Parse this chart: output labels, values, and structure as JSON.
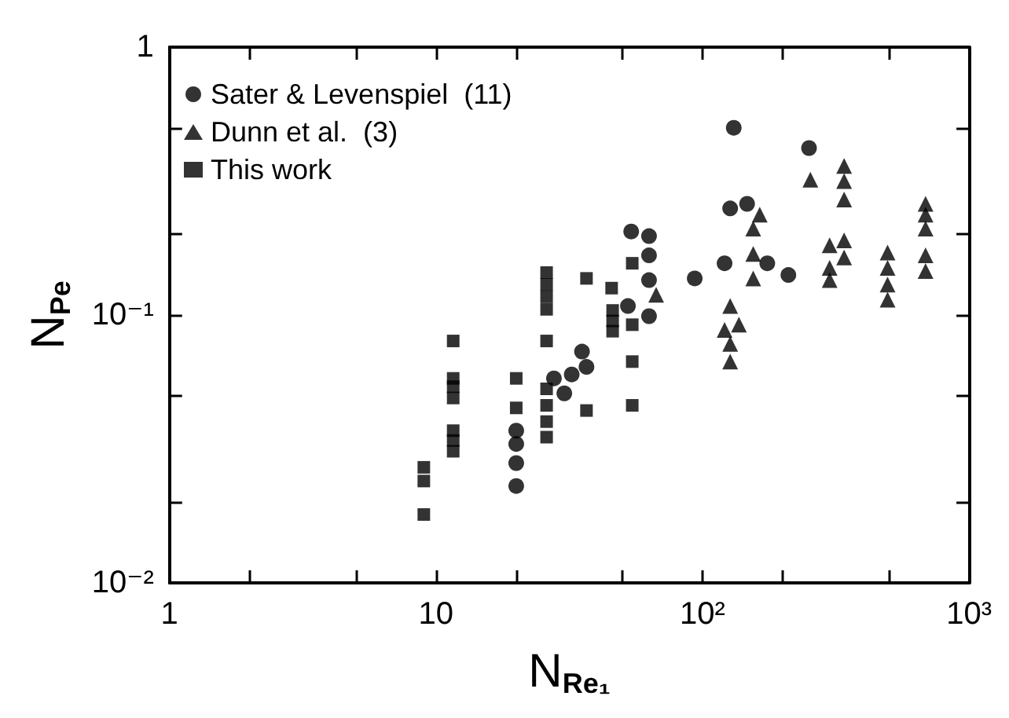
{
  "chart_data": {
    "type": "scatter",
    "xlabel": "N$_{Re₁}$",
    "ylabel": "N$_{Pe}$",
    "log": "xy",
    "grid": false,
    "legend": "top left",
    "xlim": [
      1,
      1000
    ],
    "xticks": [
      {
        "value": 1,
        "label": "1"
      },
      {
        "value": 2,
        "label": null
      },
      {
        "value": 5,
        "label": null
      },
      {
        "value": 10,
        "label": "10"
      },
      {
        "value": 20,
        "label": null
      },
      {
        "value": 50,
        "label": null
      },
      {
        "value": 100,
        "label": "10²"
      },
      {
        "value": 200,
        "label": null
      },
      {
        "value": 500,
        "label": null
      },
      {
        "value": 1000,
        "label": "10³"
      }
    ],
    "ylim": [
      0.01,
      1
    ],
    "yticks": [
      {
        "value": 0.01,
        "label": "10⁻²"
      },
      {
        "value": 0.02,
        "label": null
      },
      {
        "value": 0.05,
        "label": null
      },
      {
        "value": 0.1,
        "label": "10⁻¹"
      },
      {
        "value": 0.2,
        "label": null
      },
      {
        "value": 0.5,
        "label": null
      },
      {
        "value": 1,
        "label": "1"
      }
    ],
    "series": [
      {
        "name": "Sater & Levenspiel  (11)",
        "color": "#000000",
        "marker": "circle",
        "x": [
          20,
          20,
          20,
          20,
          27.7,
          30.3,
          32.3,
          35.3,
          36.7,
          54,
          63,
          63,
          63,
          63,
          52.5,
          93.5,
          131,
          251,
          127,
          147,
          121,
          175,
          210
        ],
        "values": [
          0.037,
          0.033,
          0.028,
          0.023,
          0.058,
          0.051,
          0.06,
          0.073,
          0.064,
          0.205,
          0.197,
          0.167,
          0.135,
          0.099,
          0.108,
          0.137,
          0.5,
          0.42,
          0.25,
          0.26,
          0.156,
          0.156,
          0.141
        ]
      },
      {
        "name": "Dunn et al.  (3)",
        "color": "#000000",
        "marker": "triangle",
        "x": [
          67,
          164,
          155,
          155,
          155,
          127,
          137,
          121,
          127,
          127,
          254,
          340,
          340,
          340,
          300,
          340,
          340,
          300,
          300,
          495,
          495,
          495,
          495,
          687,
          687,
          687,
          687,
          687
        ],
        "values": [
          0.119,
          0.237,
          0.21,
          0.169,
          0.137,
          0.108,
          0.092,
          0.088,
          0.078,
          0.067,
          0.32,
          0.36,
          0.316,
          0.27,
          0.182,
          0.19,
          0.164,
          0.15,
          0.135,
          0.171,
          0.15,
          0.13,
          0.114,
          0.26,
          0.237,
          0.21,
          0.167,
          0.146
        ]
      },
      {
        "name": "This work",
        "color": "#000000",
        "marker": "square",
        "x": [
          9,
          9,
          9,
          11.6,
          11.6,
          11.6,
          11.6,
          11.6,
          11.6,
          11.6,
          20,
          20,
          26,
          26,
          26,
          26,
          26,
          26,
          26,
          26,
          26,
          36.7,
          36.7,
          45.6,
          46,
          46,
          46,
          54.5,
          54.5,
          54.5,
          54.5
        ],
        "values": [
          0.027,
          0.024,
          0.018,
          0.08,
          0.058,
          0.054,
          0.049,
          0.037,
          0.034,
          0.031,
          0.058,
          0.045,
          0.144,
          0.13,
          0.117,
          0.105,
          0.08,
          0.053,
          0.046,
          0.04,
          0.035,
          0.137,
          0.044,
          0.126,
          0.104,
          0.095,
          0.087,
          0.156,
          0.092,
          0.067,
          0.046
        ]
      }
    ]
  }
}
